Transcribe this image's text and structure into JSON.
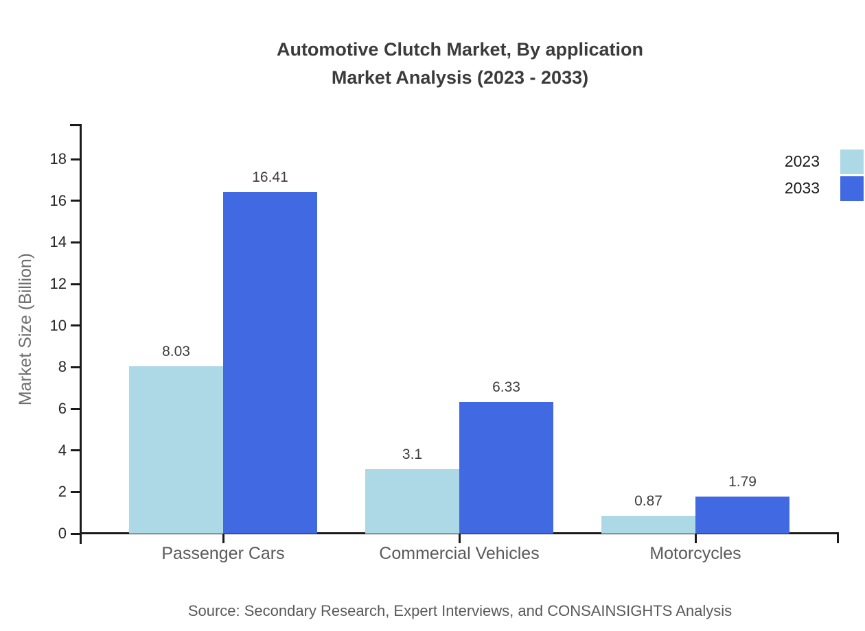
{
  "chart": {
    "title_line1": "Automotive Clutch Market, By application",
    "title_line2": "Market Analysis (2023 - 2033)",
    "source": "Source: Secondary Research, Expert Interviews, and CONSAINSIGHTS Analysis"
  },
  "chart_data": {
    "type": "bar",
    "title": "Automotive Clutch Market, By application Market Analysis (2023 - 2033)",
    "categories": [
      "Passenger Cars",
      "Commercial Vehicles",
      "Motorcycles"
    ],
    "series": [
      {
        "name": "2023",
        "color": "#add8e6",
        "values": [
          8.03,
          3.1,
          0.87
        ]
      },
      {
        "name": "2033",
        "color": "#4169e1",
        "values": [
          16.41,
          6.33,
          1.79
        ]
      }
    ],
    "xlabel": "",
    "ylabel": "Market Size (Billion)",
    "ylim": [
      0,
      18
    ],
    "yticks": [
      0,
      2,
      4,
      6,
      8,
      10,
      12,
      14,
      16,
      18
    ],
    "grid": false,
    "legend_position": "top-right",
    "value_labels_shown": true,
    "colors": {
      "axis": "#1a1a1a",
      "title_text": "#3b3b3b",
      "tick_text": "#262626",
      "category_text": "#5a5a5a",
      "value_text": "#3d3d3d",
      "source_text": "#595959",
      "ylabel_text": "#6e6e6e"
    }
  }
}
